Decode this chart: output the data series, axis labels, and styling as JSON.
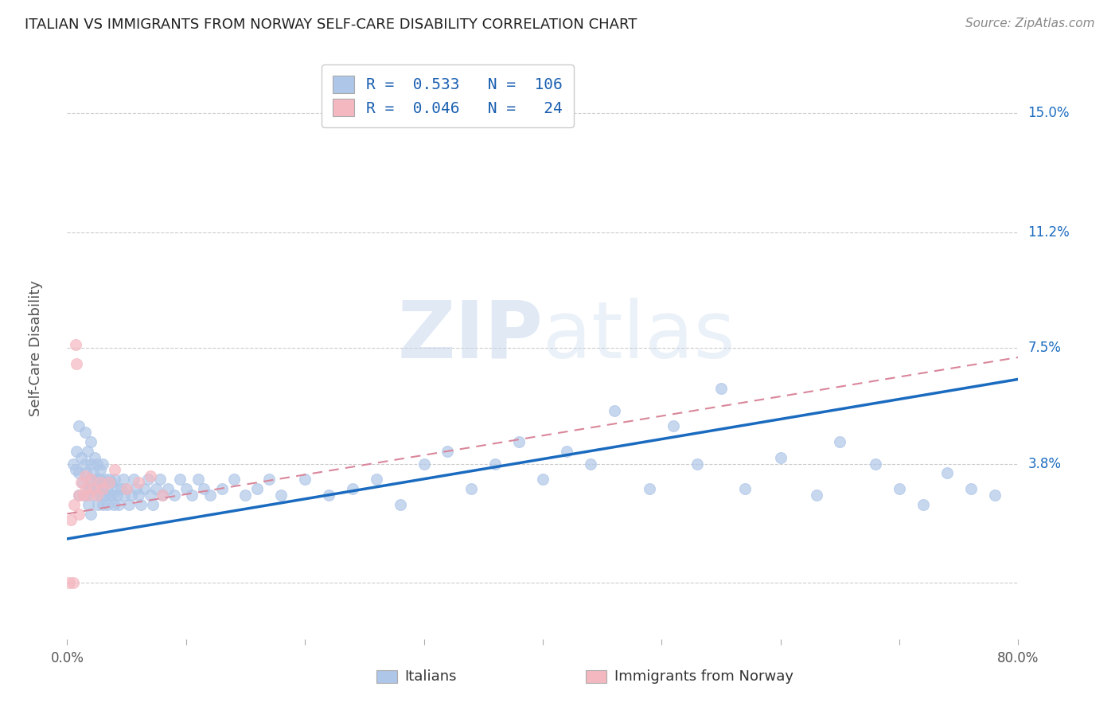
{
  "title": "ITALIAN VS IMMIGRANTS FROM NORWAY SELF-CARE DISABILITY CORRELATION CHART",
  "source": "Source: ZipAtlas.com",
  "ylabel": "Self-Care Disability",
  "watermark": "ZIPatlas",
  "xmin": 0.0,
  "xmax": 0.8,
  "ymin": -0.018,
  "ymax": 0.168,
  "yticks": [
    0.0,
    0.038,
    0.075,
    0.112,
    0.15
  ],
  "ytick_labels": [
    "",
    "3.8%",
    "7.5%",
    "11.2%",
    "15.0%"
  ],
  "xticks": [
    0.0,
    0.1,
    0.2,
    0.3,
    0.4,
    0.5,
    0.6,
    0.7,
    0.8
  ],
  "xtick_labels": [
    "0.0%",
    "",
    "",
    "",
    "",
    "",
    "",
    "",
    "80.0%"
  ],
  "legend_labels": [
    "Italians",
    "Immigrants from Norway"
  ],
  "italian_color": "#aec6e8",
  "norway_color": "#f4b8c1",
  "italian_line_color": "#1a6bbf",
  "norway_line_color": "#d9869a",
  "grid_color": "#cccccc",
  "background_color": "#ffffff",
  "R_italian": 0.533,
  "N_italian": 106,
  "R_norway": 0.046,
  "N_norway": 24,
  "italian_line_x0": 0.0,
  "italian_line_y0": 0.014,
  "italian_line_x1": 0.8,
  "italian_line_y1": 0.065,
  "norway_line_x0": 0.0,
  "norway_line_y0": 0.022,
  "norway_line_x1": 0.8,
  "norway_line_y1": 0.072,
  "italian_x": [
    0.005,
    0.007,
    0.008,
    0.01,
    0.01,
    0.01,
    0.012,
    0.013,
    0.015,
    0.015,
    0.015,
    0.016,
    0.017,
    0.018,
    0.018,
    0.019,
    0.02,
    0.02,
    0.02,
    0.02,
    0.022,
    0.022,
    0.023,
    0.024,
    0.025,
    0.025,
    0.026,
    0.027,
    0.028,
    0.028,
    0.029,
    0.03,
    0.03,
    0.03,
    0.031,
    0.032,
    0.033,
    0.034,
    0.035,
    0.036,
    0.037,
    0.038,
    0.039,
    0.04,
    0.041,
    0.042,
    0.043,
    0.045,
    0.047,
    0.048,
    0.05,
    0.052,
    0.054,
    0.056,
    0.058,
    0.06,
    0.062,
    0.065,
    0.068,
    0.07,
    0.072,
    0.075,
    0.078,
    0.08,
    0.085,
    0.09,
    0.095,
    0.1,
    0.105,
    0.11,
    0.115,
    0.12,
    0.13,
    0.14,
    0.15,
    0.16,
    0.17,
    0.18,
    0.2,
    0.22,
    0.24,
    0.26,
    0.28,
    0.3,
    0.32,
    0.34,
    0.36,
    0.38,
    0.4,
    0.42,
    0.44,
    0.46,
    0.49,
    0.51,
    0.53,
    0.55,
    0.57,
    0.6,
    0.63,
    0.65,
    0.68,
    0.7,
    0.72,
    0.74,
    0.76,
    0.78
  ],
  "italian_y": [
    0.038,
    0.036,
    0.042,
    0.05,
    0.035,
    0.028,
    0.04,
    0.032,
    0.048,
    0.038,
    0.028,
    0.035,
    0.042,
    0.03,
    0.025,
    0.033,
    0.045,
    0.038,
    0.03,
    0.022,
    0.035,
    0.028,
    0.04,
    0.033,
    0.038,
    0.03,
    0.025,
    0.033,
    0.036,
    0.028,
    0.032,
    0.038,
    0.03,
    0.025,
    0.033,
    0.028,
    0.03,
    0.025,
    0.033,
    0.028,
    0.032,
    0.028,
    0.025,
    0.033,
    0.03,
    0.028,
    0.025,
    0.03,
    0.033,
    0.028,
    0.03,
    0.025,
    0.028,
    0.033,
    0.03,
    0.028,
    0.025,
    0.03,
    0.033,
    0.028,
    0.025,
    0.03,
    0.033,
    0.028,
    0.03,
    0.028,
    0.033,
    0.03,
    0.028,
    0.033,
    0.03,
    0.028,
    0.03,
    0.033,
    0.028,
    0.03,
    0.033,
    0.028,
    0.033,
    0.028,
    0.03,
    0.033,
    0.025,
    0.038,
    0.042,
    0.03,
    0.038,
    0.045,
    0.033,
    0.042,
    0.038,
    0.055,
    0.03,
    0.05,
    0.038,
    0.062,
    0.03,
    0.04,
    0.028,
    0.045,
    0.038,
    0.03,
    0.025,
    0.035,
    0.03,
    0.028
  ],
  "norway_x": [
    0.002,
    0.003,
    0.005,
    0.006,
    0.007,
    0.008,
    0.01,
    0.01,
    0.012,
    0.013,
    0.015,
    0.016,
    0.018,
    0.02,
    0.022,
    0.025,
    0.028,
    0.03,
    0.035,
    0.04,
    0.05,
    0.06,
    0.07,
    0.08
  ],
  "norway_y": [
    0.0,
    0.02,
    0.0,
    0.025,
    0.076,
    0.07,
    0.028,
    0.022,
    0.032,
    0.028,
    0.034,
    0.03,
    0.028,
    0.033,
    0.03,
    0.028,
    0.032,
    0.03,
    0.032,
    0.036,
    0.03,
    0.032,
    0.034,
    0.028
  ]
}
